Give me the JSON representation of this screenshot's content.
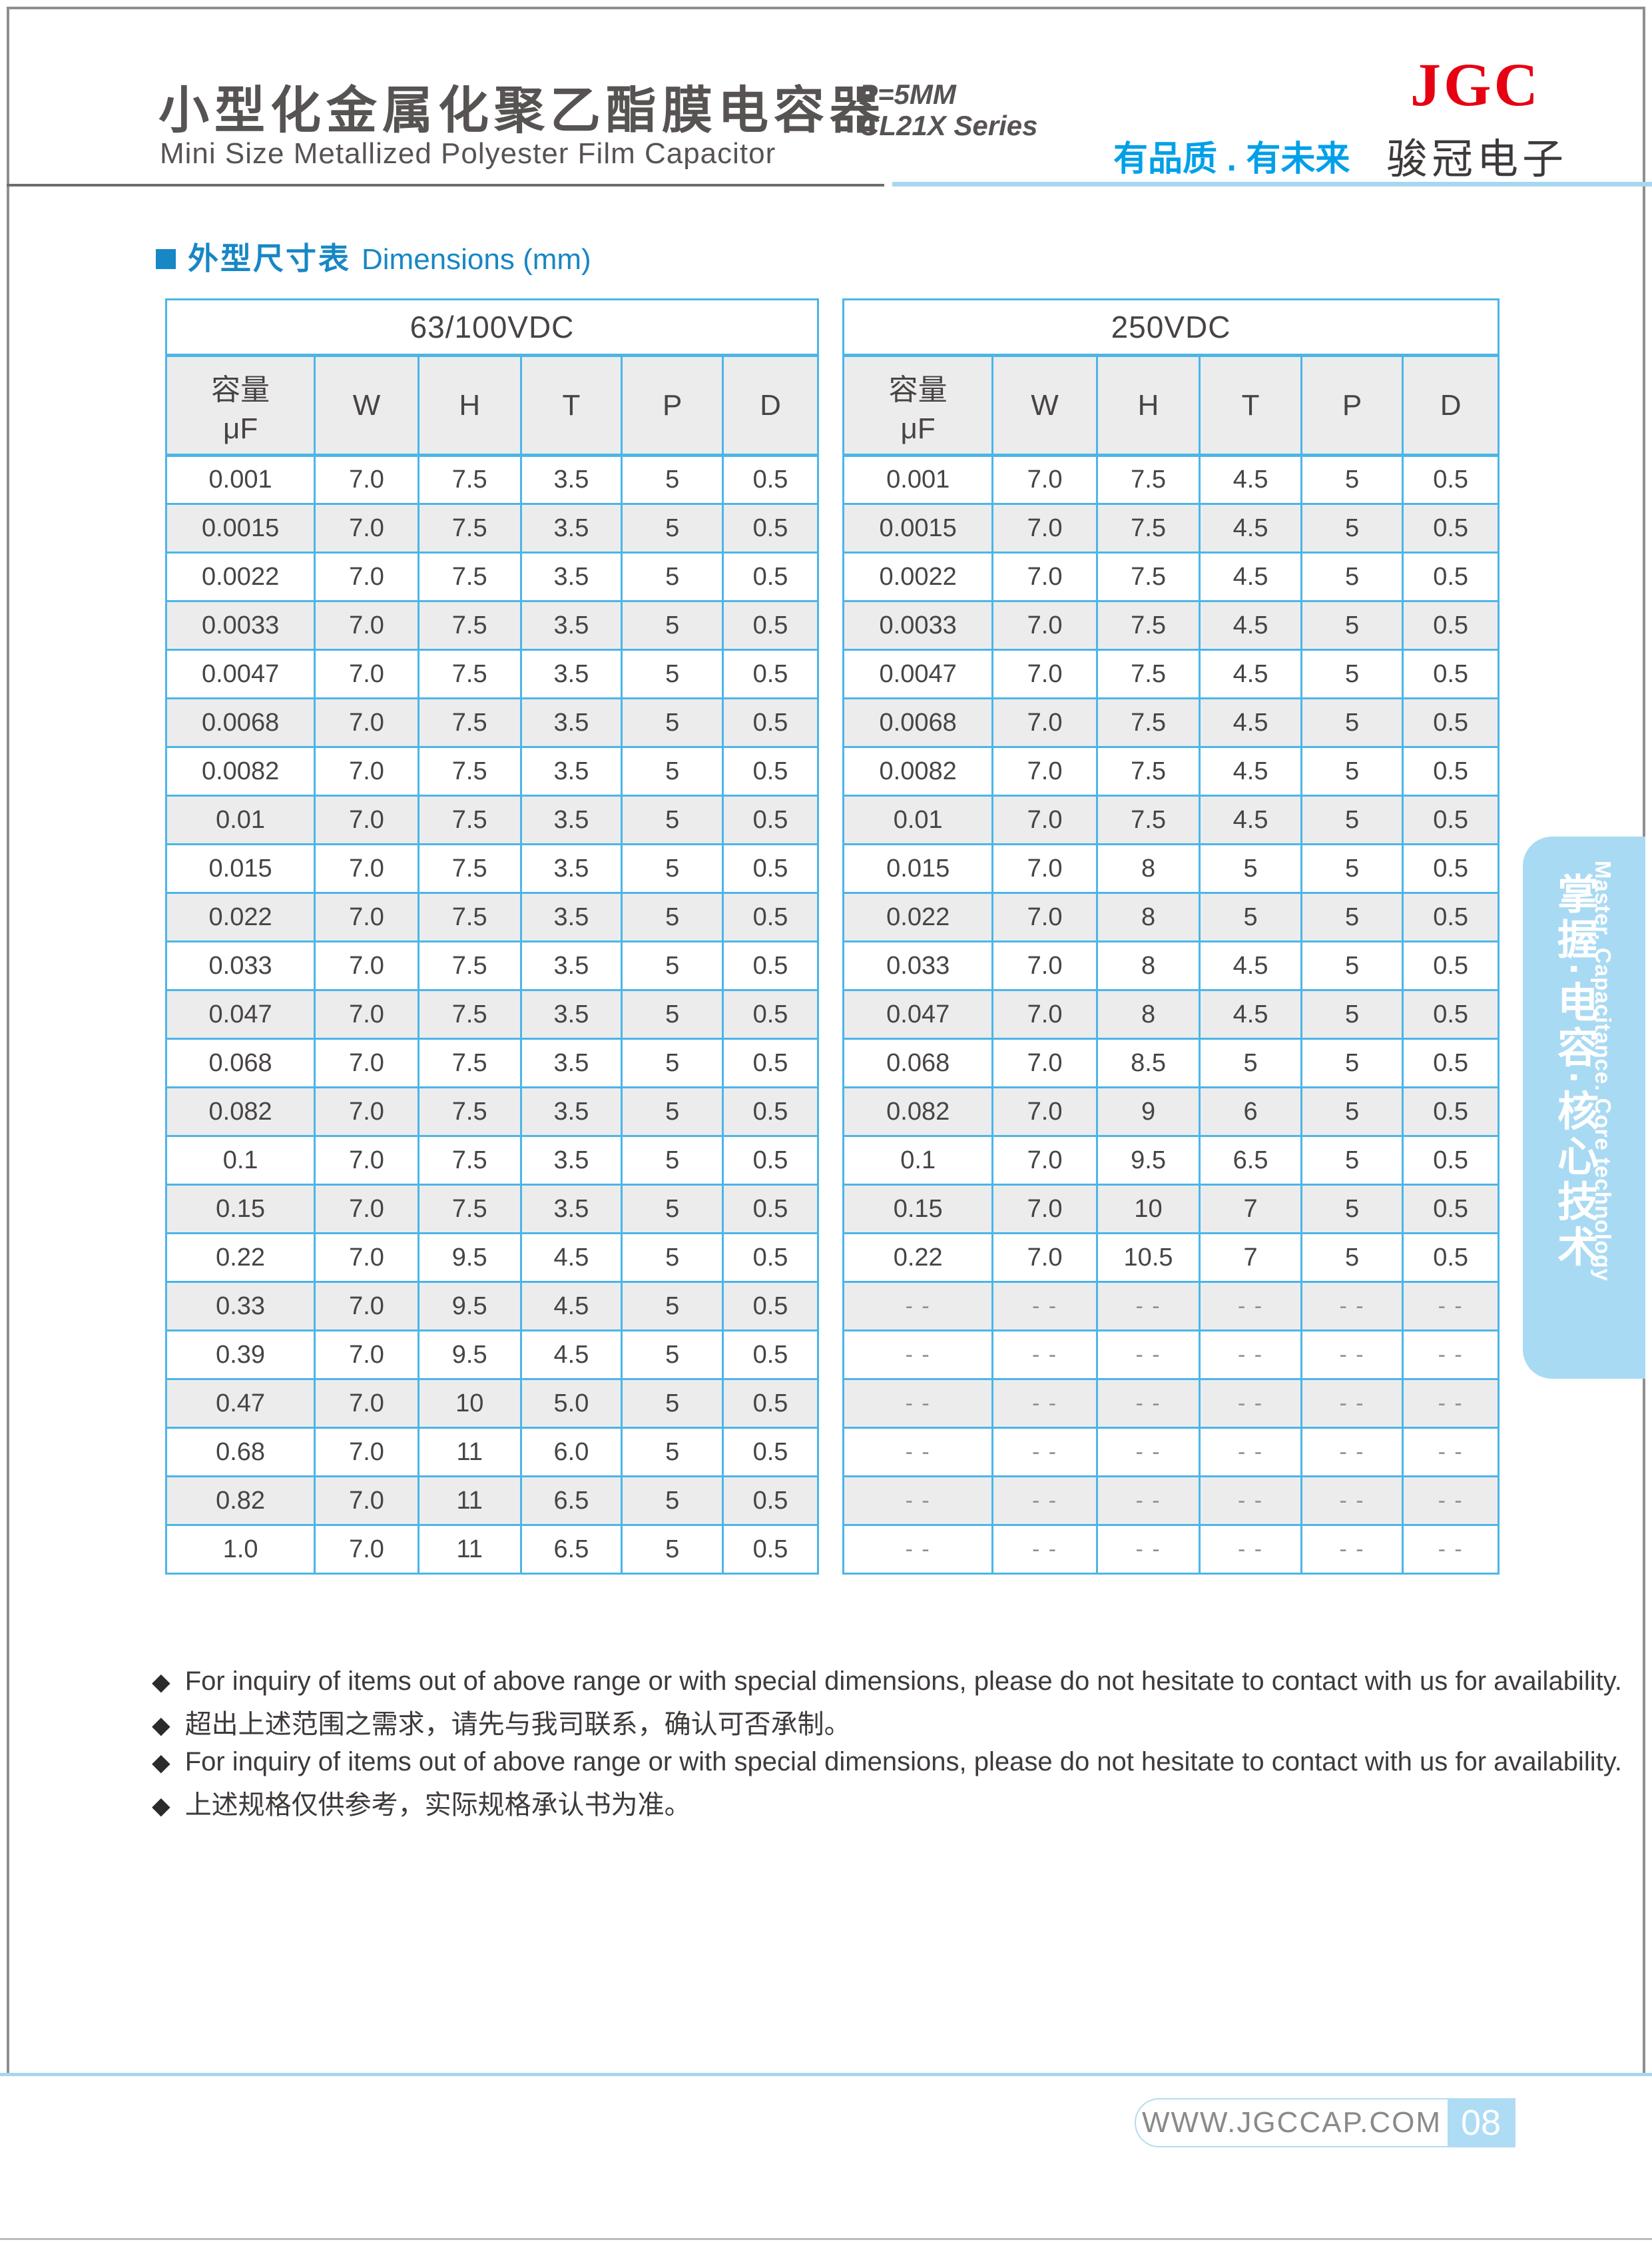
{
  "header": {
    "title_cn": "小型化金属化聚乙酯膜电容器",
    "series_line1": "P=5MM",
    "series_line2": "CL21X Series",
    "title_en": "Mini Size Metallized Polyester Film Capacitor",
    "slogan": "有品质 . 有未来",
    "logo": "JGC",
    "brand_cn": "骏冠电子"
  },
  "section": {
    "title_cn": "外型尺寸表",
    "title_en": "Dimensions  (mm)"
  },
  "cap_header": {
    "line1": "容量",
    "line2": "μF"
  },
  "columns": [
    "W",
    "H",
    "T",
    "P",
    "D"
  ],
  "tables": [
    {
      "voltage": "63/100VDC",
      "rows": [
        [
          "0.001",
          "7.0",
          "7.5",
          "3.5",
          "5",
          "0.5"
        ],
        [
          "0.0015",
          "7.0",
          "7.5",
          "3.5",
          "5",
          "0.5"
        ],
        [
          "0.0022",
          "7.0",
          "7.5",
          "3.5",
          "5",
          "0.5"
        ],
        [
          "0.0033",
          "7.0",
          "7.5",
          "3.5",
          "5",
          "0.5"
        ],
        [
          "0.0047",
          "7.0",
          "7.5",
          "3.5",
          "5",
          "0.5"
        ],
        [
          "0.0068",
          "7.0",
          "7.5",
          "3.5",
          "5",
          "0.5"
        ],
        [
          "0.0082",
          "7.0",
          "7.5",
          "3.5",
          "5",
          "0.5"
        ],
        [
          "0.01",
          "7.0",
          "7.5",
          "3.5",
          "5",
          "0.5"
        ],
        [
          "0.015",
          "7.0",
          "7.5",
          "3.5",
          "5",
          "0.5"
        ],
        [
          "0.022",
          "7.0",
          "7.5",
          "3.5",
          "5",
          "0.5"
        ],
        [
          "0.033",
          "7.0",
          "7.5",
          "3.5",
          "5",
          "0.5"
        ],
        [
          "0.047",
          "7.0",
          "7.5",
          "3.5",
          "5",
          "0.5"
        ],
        [
          "0.068",
          "7.0",
          "7.5",
          "3.5",
          "5",
          "0.5"
        ],
        [
          "0.082",
          "7.0",
          "7.5",
          "3.5",
          "5",
          "0.5"
        ],
        [
          "0.1",
          "7.0",
          "7.5",
          "3.5",
          "5",
          "0.5"
        ],
        [
          "0.15",
          "7.0",
          "7.5",
          "3.5",
          "5",
          "0.5"
        ],
        [
          "0.22",
          "7.0",
          "9.5",
          "4.5",
          "5",
          "0.5"
        ],
        [
          "0.33",
          "7.0",
          "9.5",
          "4.5",
          "5",
          "0.5"
        ],
        [
          "0.39",
          "7.0",
          "9.5",
          "4.5",
          "5",
          "0.5"
        ],
        [
          "0.47",
          "7.0",
          "10",
          "5.0",
          "5",
          "0.5"
        ],
        [
          "0.68",
          "7.0",
          "11",
          "6.0",
          "5",
          "0.5"
        ],
        [
          "0.82",
          "7.0",
          "11",
          "6.5",
          "5",
          "0.5"
        ],
        [
          "1.0",
          "7.0",
          "11",
          "6.5",
          "5",
          "0.5"
        ]
      ]
    },
    {
      "voltage": "250VDC",
      "rows": [
        [
          "0.001",
          "7.0",
          "7.5",
          "4.5",
          "5",
          "0.5"
        ],
        [
          "0.0015",
          "7.0",
          "7.5",
          "4.5",
          "5",
          "0.5"
        ],
        [
          "0.0022",
          "7.0",
          "7.5",
          "4.5",
          "5",
          "0.5"
        ],
        [
          "0.0033",
          "7.0",
          "7.5",
          "4.5",
          "5",
          "0.5"
        ],
        [
          "0.0047",
          "7.0",
          "7.5",
          "4.5",
          "5",
          "0.5"
        ],
        [
          "0.0068",
          "7.0",
          "7.5",
          "4.5",
          "5",
          "0.5"
        ],
        [
          "0.0082",
          "7.0",
          "7.5",
          "4.5",
          "5",
          "0.5"
        ],
        [
          "0.01",
          "7.0",
          "7.5",
          "4.5",
          "5",
          "0.5"
        ],
        [
          "0.015",
          "7.0",
          "8",
          "5",
          "5",
          "0.5"
        ],
        [
          "0.022",
          "7.0",
          "8",
          "5",
          "5",
          "0.5"
        ],
        [
          "0.033",
          "7.0",
          "8",
          "4.5",
          "5",
          "0.5"
        ],
        [
          "0.047",
          "7.0",
          "8",
          "4.5",
          "5",
          "0.5"
        ],
        [
          "0.068",
          "7.0",
          "8.5",
          "5",
          "5",
          "0.5"
        ],
        [
          "0.082",
          "7.0",
          "9",
          "6",
          "5",
          "0.5"
        ],
        [
          "0.1",
          "7.0",
          "9.5",
          "6.5",
          "5",
          "0.5"
        ],
        [
          "0.15",
          "7.0",
          "10",
          "7",
          "5",
          "0.5"
        ],
        [
          "0.22",
          "7.0",
          "10.5",
          "7",
          "5",
          "0.5"
        ],
        [
          "- -",
          "- -",
          "- -",
          "- -",
          "- -",
          "- -"
        ],
        [
          "- -",
          "- -",
          "- -",
          "- -",
          "- -",
          "- -"
        ],
        [
          "- -",
          "- -",
          "- -",
          "- -",
          "- -",
          "- -"
        ],
        [
          "- -",
          "- -",
          "- -",
          "- -",
          "- -",
          "- -"
        ],
        [
          "- -",
          "- -",
          "- -",
          "- -",
          "- -",
          "- -"
        ],
        [
          "- -",
          "- -",
          "- -",
          "- -",
          "- -",
          "- -"
        ]
      ]
    }
  ],
  "notes": [
    "For inquiry of items out of above range or with special dimensions, please do not hesitate to contact with us for availability.",
    "超出上述范围之需求，请先与我司联系，确认可否承制。",
    "For inquiry of items out of above range or with special dimensions, please do not hesitate to contact with us for availability.",
    "上述规格仅供参考，实际规格承认书为准。"
  ],
  "banner": {
    "text_cn": "掌握·电容·核心技术",
    "text_en": "Master. Capacitance. Core technology"
  },
  "footer": {
    "website": "WWW.JGCCAP.COM",
    "page_number": "08"
  },
  "colors": {
    "accent_blue": "#1787c5",
    "table_border": "#4cb5e8",
    "brand_red": "#e60012",
    "slogan_blue": "#00a0e9",
    "banner_blue": "#a9daf3",
    "row_gray": "#ececec",
    "text_dark": "#474443"
  }
}
